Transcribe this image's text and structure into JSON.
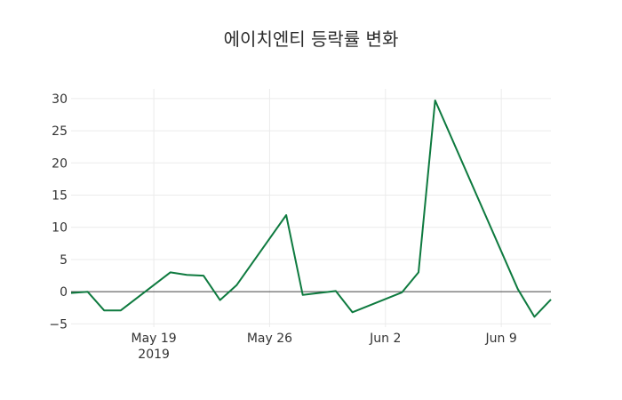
{
  "chart_data": {
    "type": "line",
    "title": "에이치엔티 등락률 변화",
    "xlabel": "",
    "ylabel": "",
    "x": [
      "2019-05-14",
      "2019-05-15",
      "2019-05-16",
      "2019-05-17",
      "2019-05-20",
      "2019-05-21",
      "2019-05-22",
      "2019-05-23",
      "2019-05-24",
      "2019-05-27",
      "2019-05-28",
      "2019-05-30",
      "2019-05-31",
      "2019-06-03",
      "2019-06-04",
      "2019-06-05",
      "2019-06-10",
      "2019-06-11",
      "2019-06-12"
    ],
    "series": [
      {
        "name": "등락률",
        "color": "#0e7a3f",
        "values": [
          -0.2,
          0.0,
          -2.9,
          -2.9,
          3.0,
          2.6,
          2.5,
          -1.3,
          1.0,
          11.9,
          -0.5,
          0.1,
          -3.2,
          -0.1,
          3.0,
          29.7,
          0.4,
          -3.9,
          -1.2
        ]
      }
    ],
    "xrange": [
      "2019-05-14",
      "2019-06-12"
    ],
    "ylim": [
      -5.5,
      31.5
    ],
    "yticks": [
      -5,
      0,
      5,
      10,
      15,
      20,
      25,
      30
    ],
    "ytick_labels": [
      "−5",
      "0",
      "5",
      "10",
      "15",
      "20",
      "25",
      "30"
    ],
    "xticks": [
      "2019-05-19",
      "2019-05-26",
      "2019-06-02",
      "2019-06-09"
    ],
    "xtick_labels": [
      "May 19",
      "May 26",
      "Jun 2",
      "Jun 9"
    ],
    "xtick_sublabel": "2019",
    "grid": true,
    "zeroline": true,
    "legend": false
  }
}
